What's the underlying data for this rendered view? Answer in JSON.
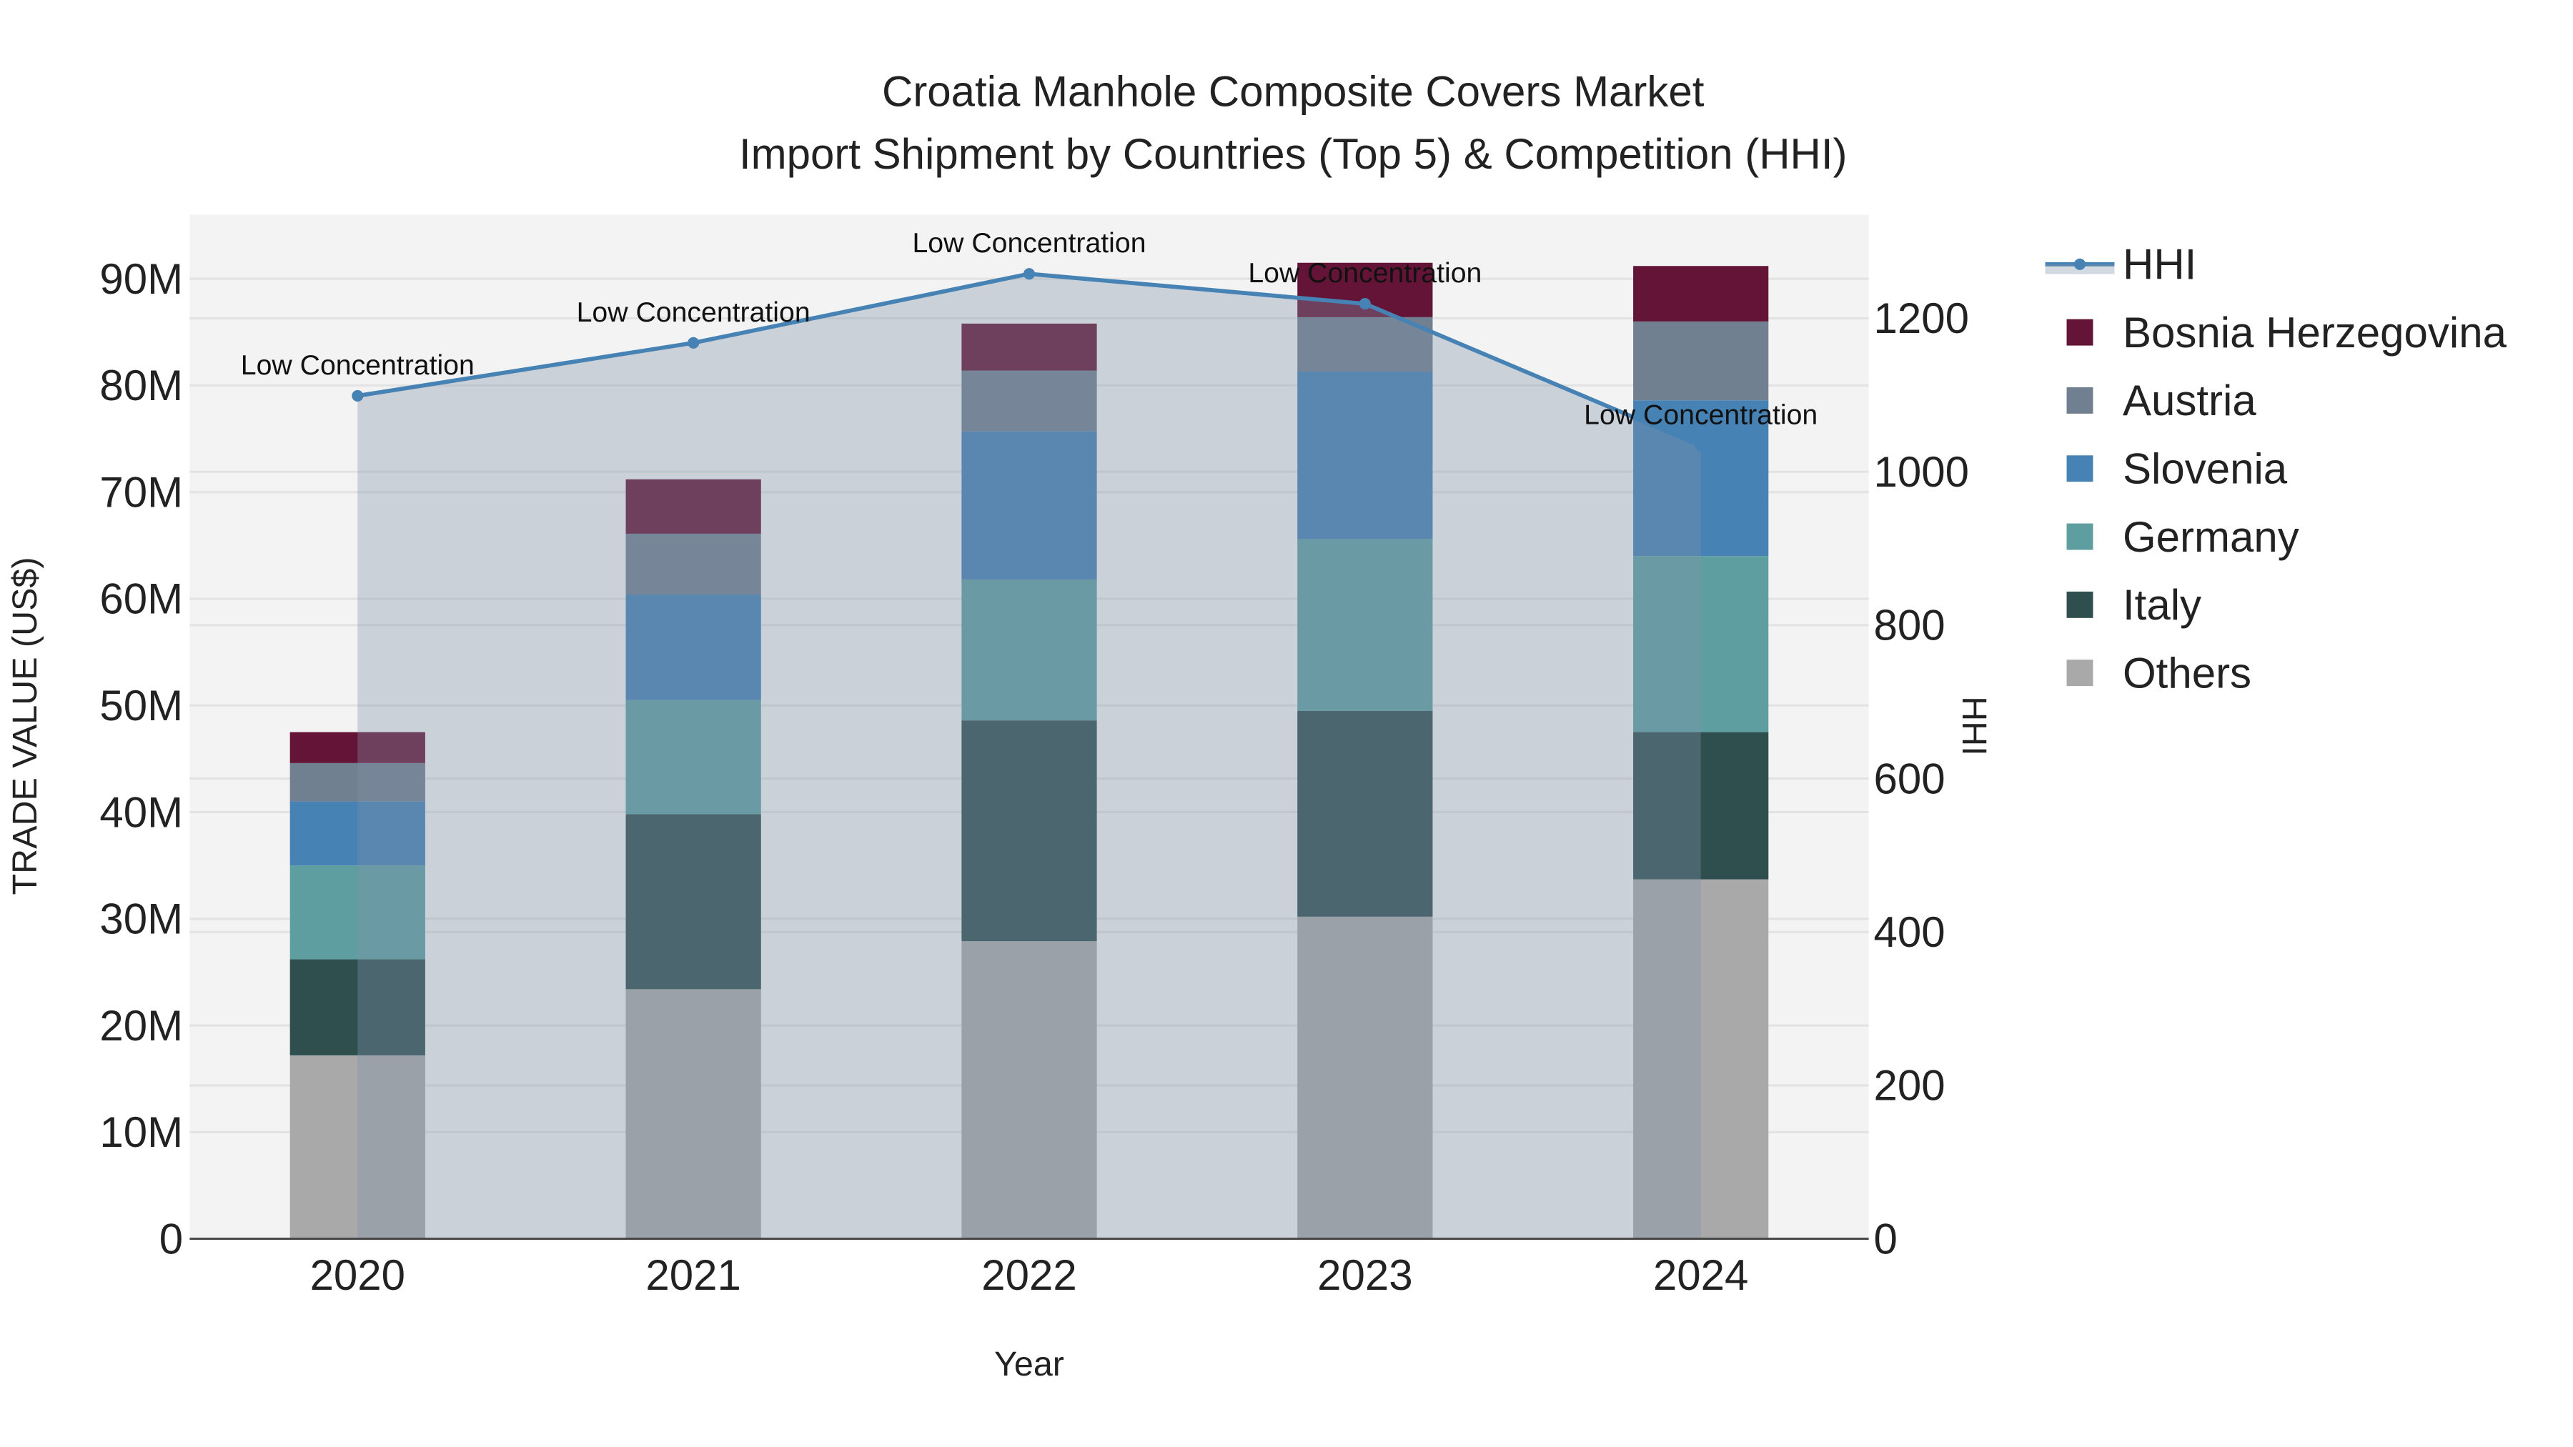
{
  "chart_data": {
    "type": "bar",
    "title_line1": "Croatia Manhole Composite Covers Market",
    "title_line2": "Import Shipment by Countries (Top 5) & Competition (HHI)",
    "xlabel": "Year",
    "ylabel": "TRADE VALUE (US$)",
    "y2label": "HHI",
    "categories": [
      "2020",
      "2021",
      "2022",
      "2023",
      "2024"
    ],
    "ylim": [
      0,
      96000000
    ],
    "y_ticks": [
      0,
      10000000,
      20000000,
      30000000,
      40000000,
      50000000,
      60000000,
      70000000,
      80000000,
      90000000
    ],
    "y_tick_labels": [
      "0",
      "10M",
      "20M",
      "30M",
      "40M",
      "50M",
      "60M",
      "70M",
      "80M",
      "90M"
    ],
    "y2lim": [
      0,
      1335
    ],
    "y2_ticks": [
      0,
      200,
      400,
      600,
      800,
      1000,
      1200
    ],
    "y2_tick_labels": [
      "0",
      "200",
      "400",
      "600",
      "800",
      "1000",
      "1200"
    ],
    "grid": true,
    "legend_position": "right",
    "series": [
      {
        "name": "Others",
        "color": "#A9A9A9",
        "values": [
          17200000,
          23400000,
          27900000,
          30200000,
          33700000
        ]
      },
      {
        "name": "Italy",
        "color": "#2F4F4F",
        "values": [
          9000000,
          16400000,
          20700000,
          19300000,
          13800000
        ]
      },
      {
        "name": "Germany",
        "color": "#5F9EA0",
        "values": [
          8800000,
          10700000,
          13200000,
          16100000,
          16500000
        ]
      },
      {
        "name": "Slovenia",
        "color": "#4682B4",
        "values": [
          6000000,
          9900000,
          13900000,
          15700000,
          14600000
        ]
      },
      {
        "name": "Austria",
        "color": "#708090",
        "values": [
          3600000,
          5700000,
          5700000,
          5100000,
          7400000
        ]
      },
      {
        "name": "Bosnia Herzegovina",
        "color": "#641537",
        "values": [
          2900000,
          5100000,
          4400000,
          5100000,
          5200000
        ]
      }
    ],
    "hhi": {
      "name": "HHI",
      "color": "#4682B4",
      "values": [
        1099,
        1168,
        1258,
        1219,
        1034
      ],
      "annotations": [
        "Low Concentration",
        "Low Concentration",
        "Low Concentration",
        "Low Concentration",
        "Low Concentration"
      ]
    },
    "legend_order": [
      "HHI",
      "Bosnia Herzegovina",
      "Austria",
      "Slovenia",
      "Germany",
      "Italy",
      "Others"
    ]
  }
}
